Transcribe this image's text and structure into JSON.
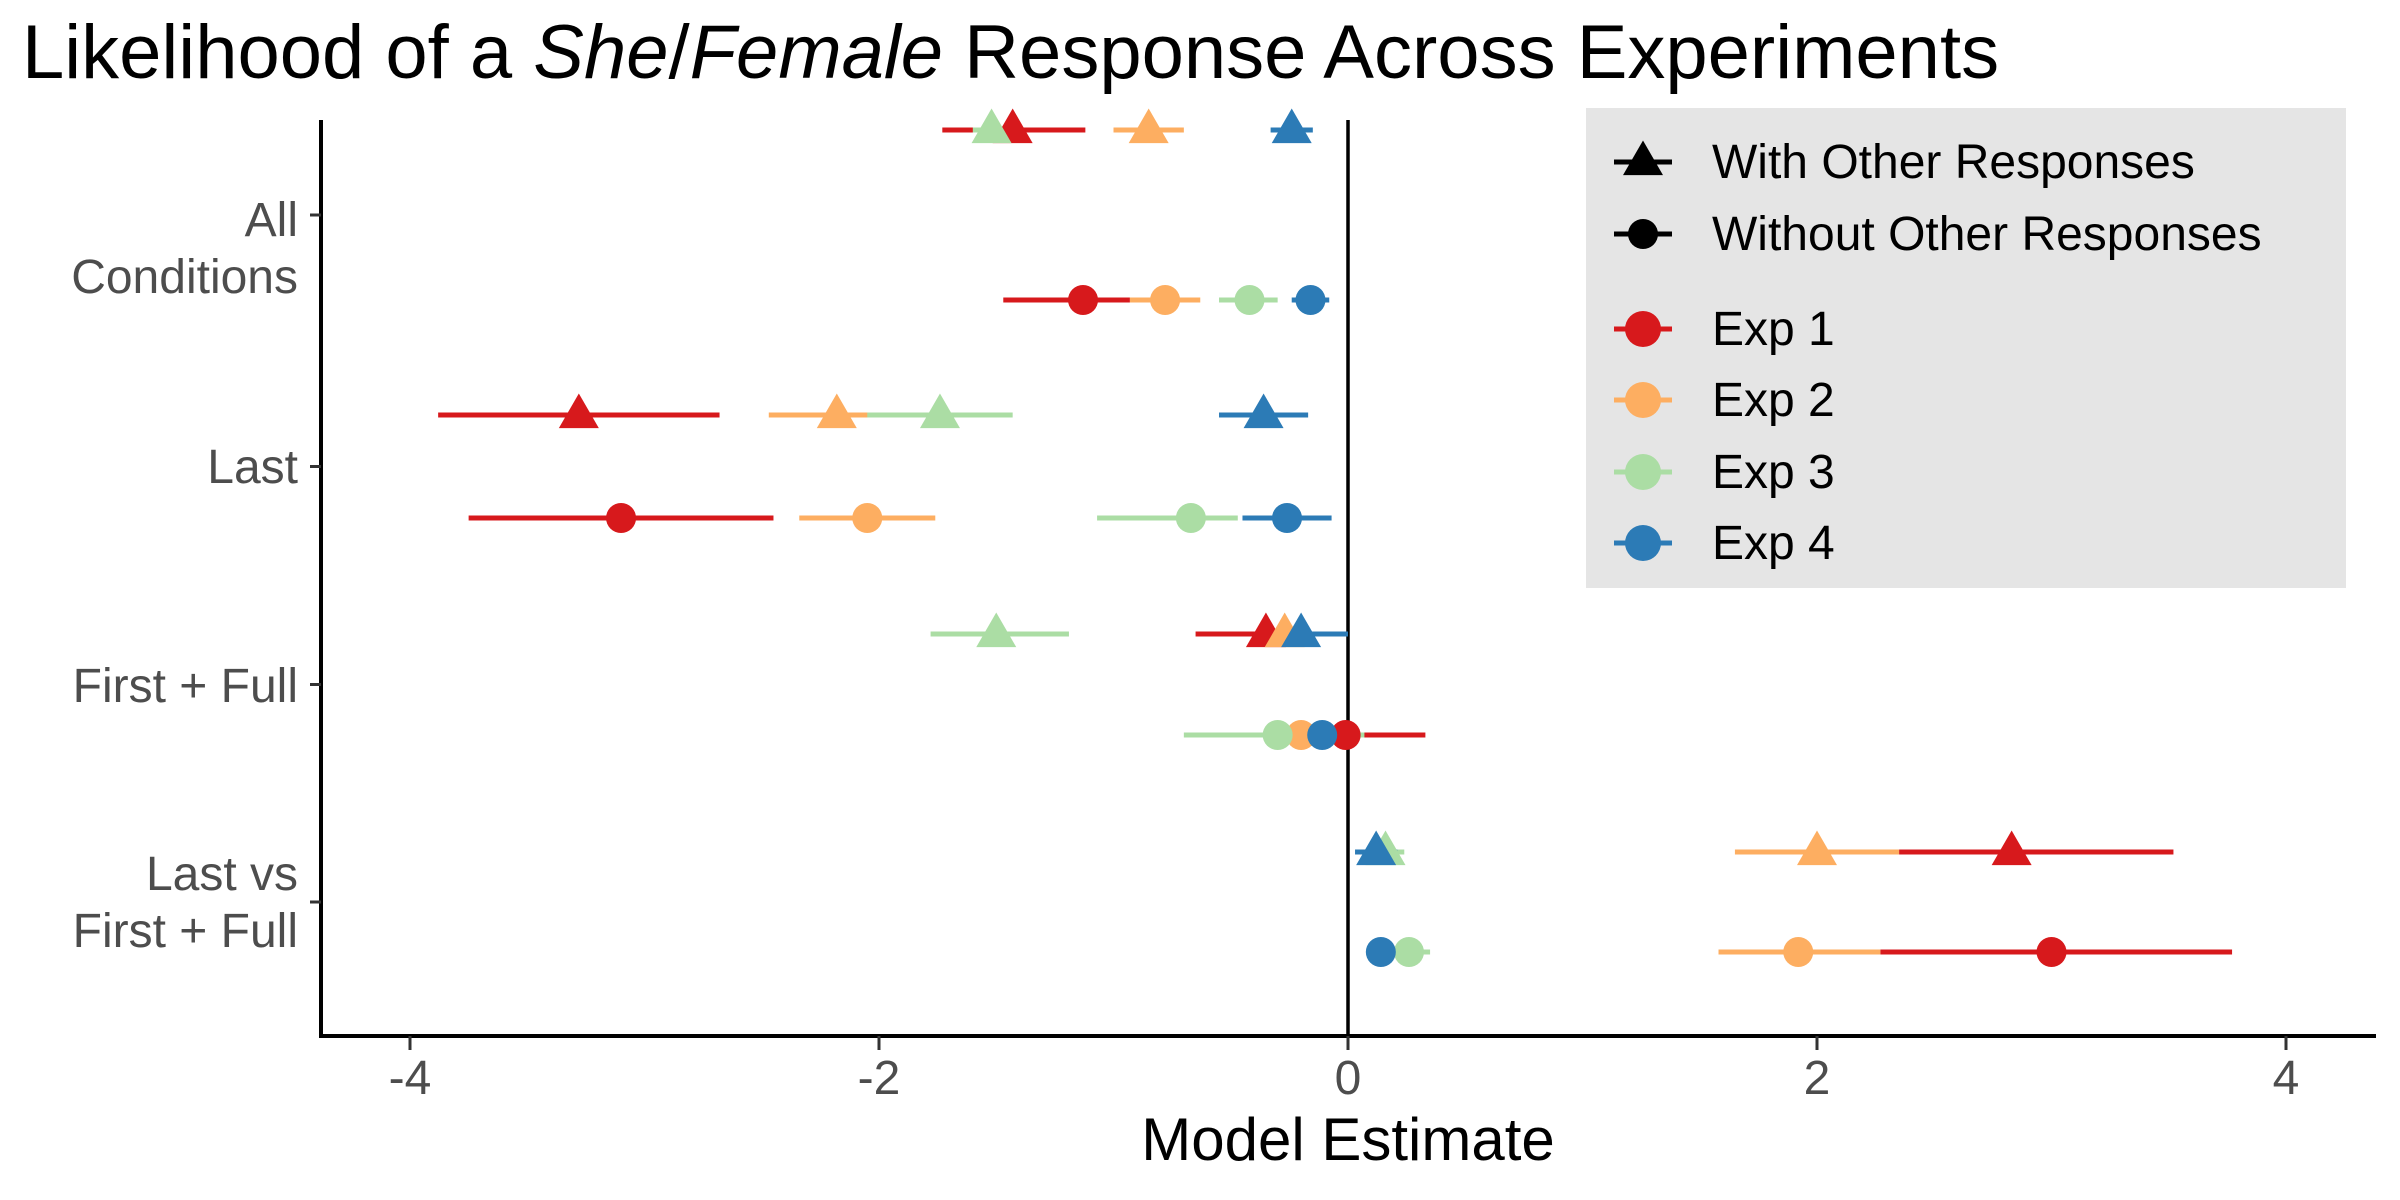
{
  "chart_data": {
    "type": "dot-whisker",
    "title_prefix": "Likelihood of a ",
    "title_em1": "She",
    "title_sep": "/",
    "title_em2": "Female",
    "title_suffix": " Response Across Experiments",
    "xlabel": "Model Estimate",
    "ylabel": "",
    "xlim": [
      -4.4,
      4.4
    ],
    "x_ticks": [
      -4,
      -2,
      0,
      2,
      4
    ],
    "x_tick_labels": [
      "-4",
      "-2",
      "0",
      "2",
      "4"
    ],
    "reference_line_x": 0,
    "grid": false,
    "legend_position": "top-right",
    "groups": [
      {
        "label_lines": [
          "All",
          "Conditions"
        ]
      },
      {
        "label_lines": [
          "Last"
        ]
      },
      {
        "label_lines": [
          "First + Full"
        ]
      },
      {
        "label_lines": [
          "Last vs",
          "First + Full"
        ]
      }
    ],
    "shape_legend": [
      {
        "name": "With Other Responses",
        "shape": "triangle"
      },
      {
        "name": "Without Other Responses",
        "shape": "circle"
      }
    ],
    "series": [
      {
        "name": "Exp 1",
        "color": "#d7191c",
        "points": [
          {
            "group": 0,
            "type": "with",
            "x": -1.43,
            "ci": [
              -1.73,
              -1.12
            ]
          },
          {
            "group": 0,
            "type": "without",
            "x": -1.13,
            "ci": [
              -1.47,
              -0.93
            ]
          },
          {
            "group": 1,
            "type": "with",
            "x": -3.28,
            "ci": [
              -3.88,
              -2.68
            ]
          },
          {
            "group": 1,
            "type": "without",
            "x": -3.1,
            "ci": [
              -3.75,
              -2.45
            ]
          },
          {
            "group": 2,
            "type": "with",
            "x": -0.35,
            "ci": [
              -0.65,
              -0.12
            ]
          },
          {
            "group": 2,
            "type": "without",
            "x": -0.01,
            "ci": [
              -0.05,
              0.33
            ]
          },
          {
            "group": 3,
            "type": "with",
            "x": 2.83,
            "ci": [
              2.35,
              3.52
            ]
          },
          {
            "group": 3,
            "type": "without",
            "x": 3.0,
            "ci": [
              2.27,
              3.77
            ]
          }
        ]
      },
      {
        "name": "Exp 2",
        "color": "#fdae61",
        "points": [
          {
            "group": 0,
            "type": "with",
            "x": -0.85,
            "ci": [
              -1.0,
              -0.7
            ]
          },
          {
            "group": 0,
            "type": "without",
            "x": -0.78,
            "ci": [
              -0.93,
              -0.63
            ]
          },
          {
            "group": 1,
            "type": "with",
            "x": -2.18,
            "ci": [
              -2.47,
              -1.89
            ]
          },
          {
            "group": 1,
            "type": "without",
            "x": -2.05,
            "ci": [
              -2.34,
              -1.76
            ]
          },
          {
            "group": 2,
            "type": "with",
            "x": -0.27,
            "ci": [
              -0.37,
              -0.17
            ]
          },
          {
            "group": 2,
            "type": "without",
            "x": -0.2,
            "ci": [
              -0.3,
              -0.1
            ]
          },
          {
            "group": 3,
            "type": "with",
            "x": 2.0,
            "ci": [
              1.65,
              2.35
            ]
          },
          {
            "group": 3,
            "type": "without",
            "x": 1.92,
            "ci": [
              1.58,
              2.27
            ]
          }
        ]
      },
      {
        "name": "Exp 3",
        "color": "#abdda4",
        "points": [
          {
            "group": 0,
            "type": "with",
            "x": -1.52,
            "ci": [
              -1.6,
              -1.44
            ]
          },
          {
            "group": 0,
            "type": "without",
            "x": -0.42,
            "ci": [
              -0.55,
              -0.3
            ]
          },
          {
            "group": 1,
            "type": "with",
            "x": -1.74,
            "ci": [
              -2.05,
              -1.43
            ]
          },
          {
            "group": 1,
            "type": "without",
            "x": -0.67,
            "ci": [
              -1.07,
              -0.47
            ]
          },
          {
            "group": 2,
            "type": "with",
            "x": -1.5,
            "ci": [
              -1.78,
              -1.19
            ]
          },
          {
            "group": 2,
            "type": "without",
            "x": -0.3,
            "ci": [
              -0.7,
              0.07
            ]
          },
          {
            "group": 3,
            "type": "with",
            "x": 0.16,
            "ci": [
              0.07,
              0.24
            ]
          },
          {
            "group": 3,
            "type": "without",
            "x": 0.26,
            "ci": [
              0.18,
              0.35
            ]
          }
        ]
      },
      {
        "name": "Exp 4",
        "color": "#2c7bb6",
        "points": [
          {
            "group": 0,
            "type": "with",
            "x": -0.24,
            "ci": [
              -0.33,
              -0.15
            ]
          },
          {
            "group": 0,
            "type": "without",
            "x": -0.16,
            "ci": [
              -0.24,
              -0.08
            ]
          },
          {
            "group": 1,
            "type": "with",
            "x": -0.36,
            "ci": [
              -0.55,
              -0.17
            ]
          },
          {
            "group": 1,
            "type": "without",
            "x": -0.26,
            "ci": [
              -0.45,
              -0.07
            ]
          },
          {
            "group": 2,
            "type": "with",
            "x": -0.2,
            "ci": [
              -0.3,
              0.0
            ]
          },
          {
            "group": 2,
            "type": "without",
            "x": -0.11,
            "ci": [
              -0.17,
              -0.05
            ]
          },
          {
            "group": 3,
            "type": "with",
            "x": 0.12,
            "ci": [
              0.03,
              0.21
            ]
          },
          {
            "group": 3,
            "type": "without",
            "x": 0.14,
            "ci": [
              0.08,
              0.2
            ]
          }
        ]
      }
    ]
  }
}
